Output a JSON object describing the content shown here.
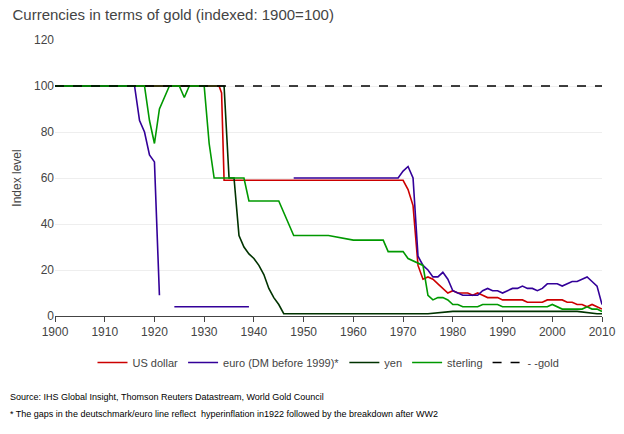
{
  "chart_data": {
    "type": "line",
    "title": "Currencies in terms of gold (indexed: 1900=100)",
    "ylabel": "Index level",
    "annotations": [
      "Source: IHS Global Insight, Thomson Reuters Datastream, World Gold Council",
      "* The gaps in the deutschmark/euro line reflect  hyperinflation in1922 followed by the breakdown after WW2"
    ],
    "xlim": [
      1900,
      2010
    ],
    "ylim": [
      0,
      120
    ],
    "yticks": [
      0,
      20,
      40,
      60,
      80,
      100,
      120
    ],
    "xticks": [
      1900,
      1910,
      1920,
      1930,
      1940,
      1950,
      1960,
      1970,
      1980,
      1990,
      2000,
      2010
    ],
    "grid": "y",
    "legend": "bottom",
    "series": [
      {
        "name": "US dollar",
        "color": "#cc0000",
        "line_style": "solid",
        "x": [
          1900,
          1914,
          1918,
          1919,
          1920,
          1925,
          1930,
          1931,
          1932,
          1933,
          1933.5,
          1934,
          1940,
          1945,
          1950,
          1960,
          1965,
          1968,
          1970,
          1971,
          1972,
          1973,
          1974,
          1975,
          1976,
          1977,
          1978,
          1979,
          1980,
          1981,
          1982,
          1983,
          1984,
          1985,
          1986,
          1987,
          1988,
          1989,
          1990,
          1991,
          1992,
          1993,
          1994,
          1995,
          1996,
          1997,
          1998,
          1999,
          2000,
          2001,
          2002,
          2003,
          2004,
          2005,
          2006,
          2007,
          2008,
          2009,
          2010
        ],
        "values": [
          100,
          100,
          100,
          100,
          100,
          100,
          100,
          100,
          100,
          100,
          97,
          59,
          59,
          59,
          59,
          59,
          59,
          59,
          59,
          55,
          48,
          22,
          16,
          17,
          16,
          14,
          12,
          10,
          11,
          10,
          10,
          10,
          9,
          10,
          9,
          8,
          8,
          8,
          7,
          7,
          7,
          7,
          7,
          6,
          6,
          6,
          6,
          7,
          7,
          7,
          7,
          6,
          6,
          5,
          5,
          4,
          5,
          4,
          3
        ]
      },
      {
        "name": "euro (DM before 1999)*",
        "color": "#330099",
        "line_style": "solid",
        "x": [
          1900,
          1905,
          1910,
          1914,
          1915,
          1916,
          1917,
          1918,
          1919,
          1920,
          1921,
          1922,
          1924,
          1925,
          1926,
          1927,
          1928,
          1929,
          1930,
          1931,
          1932,
          1933,
          1934,
          1935,
          1936,
          1937,
          1938,
          1939,
          1940,
          1948,
          1949,
          1950,
          1951,
          1952,
          1953,
          1954,
          1955,
          1956,
          1957,
          1958,
          1959,
          1960,
          1961,
          1962,
          1963,
          1964,
          1965,
          1966,
          1967,
          1968,
          1969,
          1970,
          1971,
          1972,
          1973,
          1974,
          1975,
          1976,
          1977,
          1978,
          1979,
          1980,
          1981,
          1982,
          1983,
          1984,
          1985,
          1986,
          1987,
          1988,
          1989,
          1990,
          1991,
          1992,
          1993,
          1994,
          1995,
          1996,
          1997,
          1998,
          1999,
          2000,
          2001,
          2002,
          2003,
          2004,
          2005,
          2006,
          2007,
          2008,
          2009,
          2010
        ],
        "values": [
          100,
          100,
          100,
          100,
          100,
          100,
          85,
          80,
          70,
          67,
          9,
          null,
          4,
          4,
          4,
          4,
          4,
          4,
          4,
          4,
          4,
          4,
          4,
          4,
          4,
          4,
          4,
          4,
          null,
          60,
          60,
          60,
          60,
          60,
          60,
          60,
          60,
          60,
          60,
          60,
          60,
          60,
          60,
          60,
          60,
          60,
          60,
          60,
          60,
          60,
          60,
          63,
          65,
          60,
          26,
          22,
          20,
          17,
          17,
          19,
          16,
          11,
          10,
          9,
          9,
          9,
          9,
          11,
          12,
          11,
          11,
          10,
          11,
          12,
          12,
          13,
          12,
          12,
          11,
          12,
          14,
          14,
          14,
          13,
          14,
          15,
          15,
          16,
          17,
          15,
          13,
          5
        ]
      },
      {
        "name": "yen",
        "color": "#003300",
        "line_style": "solid",
        "x": [
          1900,
          1905,
          1910,
          1914,
          1915,
          1916,
          1917,
          1918,
          1919,
          1920,
          1925,
          1930,
          1931,
          1932,
          1933,
          1934,
          1935,
          1936,
          1937,
          1938,
          1939,
          1940,
          1941,
          1942,
          1943,
          1944,
          1945,
          1946,
          1947,
          1948,
          1949,
          1950,
          1960,
          1970,
          1971,
          1972,
          1973,
          1974,
          1975,
          1980,
          1985,
          1990,
          1995,
          2000,
          2005,
          2009,
          2010
        ],
        "values": [
          100,
          100,
          100,
          100,
          100,
          100,
          100,
          100,
          100,
          100,
          100,
          100,
          100,
          100,
          100,
          100,
          60,
          60,
          35,
          30,
          27,
          25,
          22,
          18,
          12,
          8,
          5,
          1,
          1,
          1,
          1,
          1,
          1,
          1,
          1,
          1,
          1,
          1,
          1,
          2,
          2,
          2,
          2,
          2,
          2,
          1,
          1
        ]
      },
      {
        "name": "sterling",
        "color": "#009900",
        "line_style": "solid",
        "x": [
          1900,
          1905,
          1910,
          1914,
          1915,
          1916,
          1917,
          1918,
          1919,
          1920,
          1921,
          1922,
          1923,
          1924,
          1925,
          1926,
          1927,
          1928,
          1929,
          1930,
          1931,
          1932,
          1933,
          1934,
          1935,
          1936,
          1937,
          1938,
          1939,
          1940,
          1945,
          1948,
          1949,
          1950,
          1955,
          1960,
          1965,
          1966,
          1967,
          1968,
          1969,
          1970,
          1971,
          1972,
          1973,
          1974,
          1975,
          1976,
          1977,
          1978,
          1979,
          1980,
          1981,
          1982,
          1983,
          1984,
          1985,
          1986,
          1987,
          1988,
          1989,
          1990,
          1991,
          1992,
          1993,
          1994,
          1995,
          1996,
          1997,
          1998,
          1999,
          2000,
          2001,
          2002,
          2003,
          2004,
          2005,
          2006,
          2007,
          2008,
          2009,
          2010
        ],
        "values": [
          100,
          100,
          100,
          100,
          100,
          100,
          100,
          100,
          85,
          75,
          90,
          95,
          100,
          100,
          100,
          95,
          100,
          100,
          100,
          100,
          75,
          60,
          60,
          60,
          60,
          60,
          60,
          60,
          50,
          50,
          50,
          35,
          35,
          35,
          35,
          33,
          33,
          33,
          28,
          28,
          28,
          28,
          25,
          24,
          23,
          22,
          9,
          7,
          8,
          8,
          7,
          5,
          5,
          4,
          4,
          4,
          4,
          5,
          5,
          5,
          5,
          4,
          4,
          4,
          4,
          4,
          4,
          4,
          4,
          4,
          4,
          5,
          4,
          3,
          3,
          3,
          3,
          3,
          4,
          3,
          3,
          2
        ]
      },
      {
        "name": "- -gold",
        "color": "#000000",
        "line_style": "dashed",
        "x": [
          1900,
          2010
        ],
        "values": [
          100,
          100
        ]
      }
    ]
  }
}
